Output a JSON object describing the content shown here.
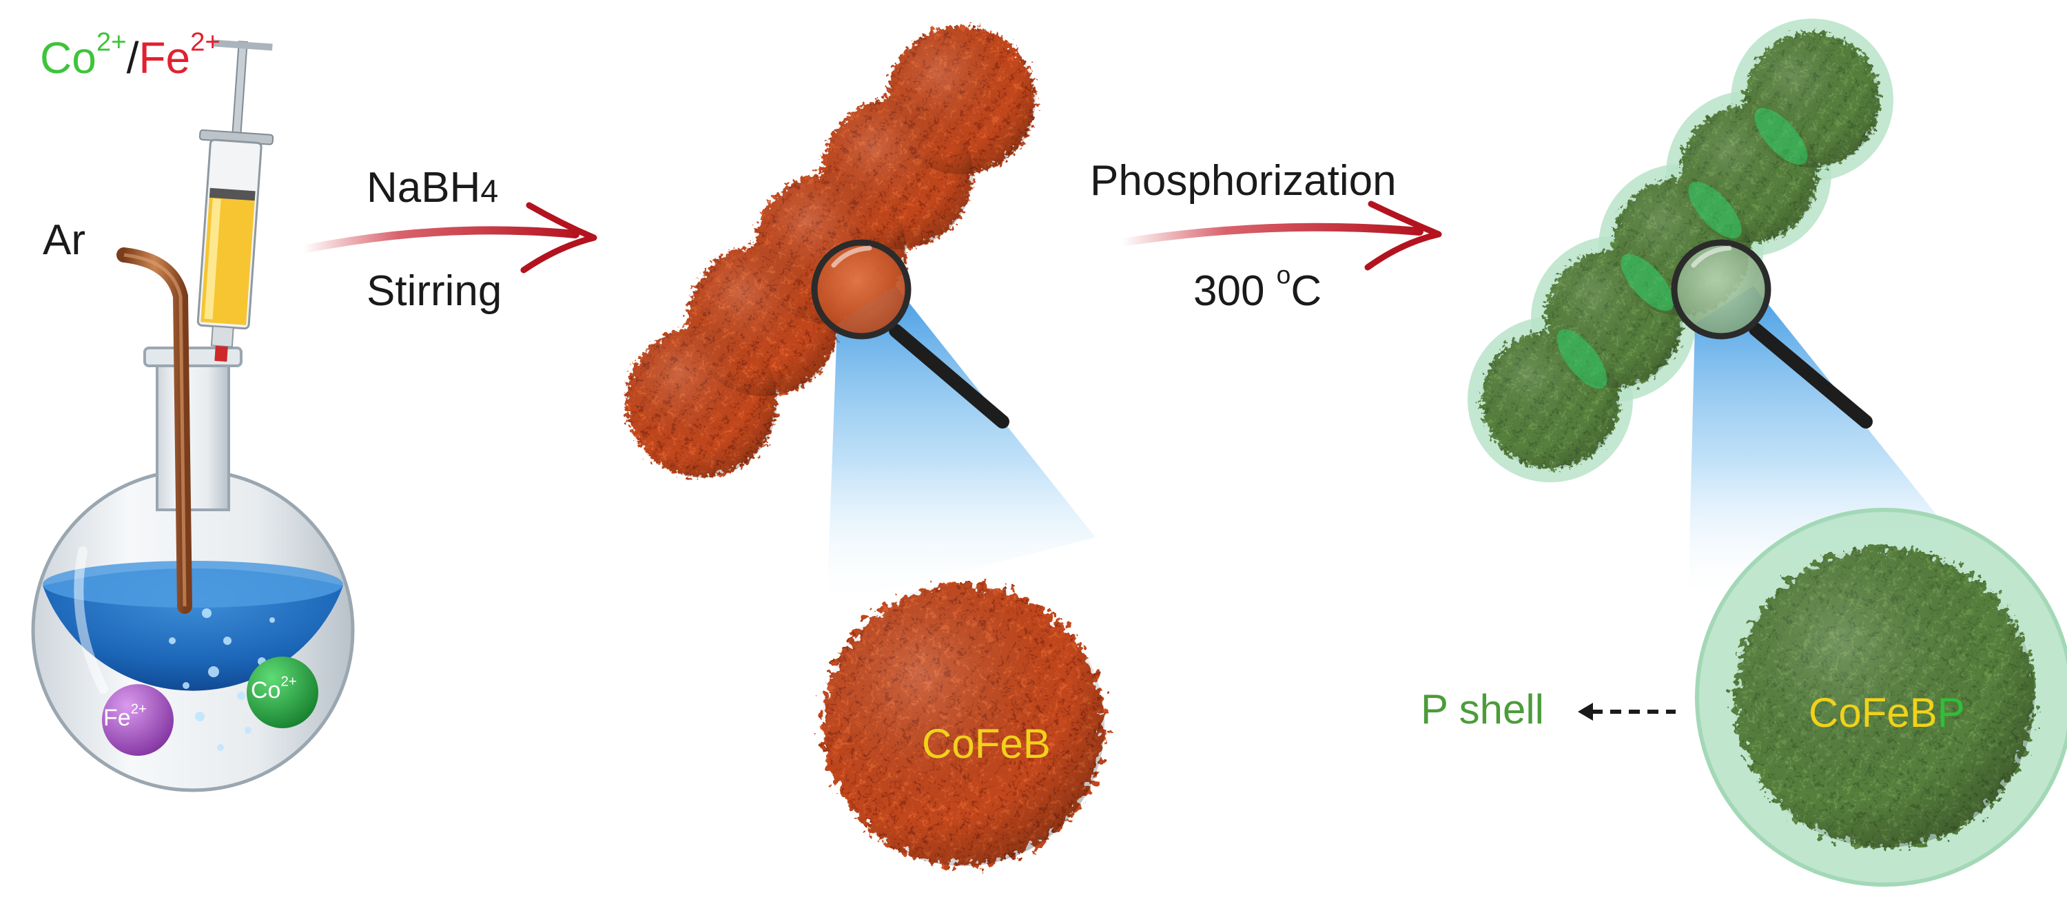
{
  "colors": {
    "cobalt_text": "#3ec43a",
    "iron_text": "#e2202f",
    "arrow_red": "#c8202e",
    "cofeb_orange": "#c2461c",
    "cofeb_dark": "#8a2c0f",
    "cofebp_green": "#567f3e",
    "shell_green": "#b9e3c9",
    "label_yellow": "#f1d21b",
    "p_shell_text": "#4c9c3a",
    "solution_blue": "#1c66b8",
    "fe_ion": "#a24cc0",
    "co_ion": "#22a43d"
  },
  "icons": [
    "syringe-icon",
    "flask-icon",
    "magnifier-icon",
    "argon-tube-icon"
  ],
  "precursor": {
    "co": "Co",
    "co_charge": "2+",
    "separator": "/",
    "fe": "Fe",
    "fe_charge": "2+"
  },
  "gas_label": "Ar",
  "step1": {
    "reagent": "NaBH",
    "reagent_subscript": "4",
    "condition": "Stirring"
  },
  "step2": {
    "process": "Phosphorization",
    "temperature": "300 ",
    "temperature_unit_sup": "o",
    "temperature_unit": "C"
  },
  "ions": {
    "fe": "Fe",
    "fe_charge": "2+",
    "co": "Co",
    "co_charge": "2+"
  },
  "product1": {
    "label": "CoFeB"
  },
  "product2": {
    "label_main": "CoFeB",
    "label_p": "P",
    "shell_label": "P shell"
  }
}
